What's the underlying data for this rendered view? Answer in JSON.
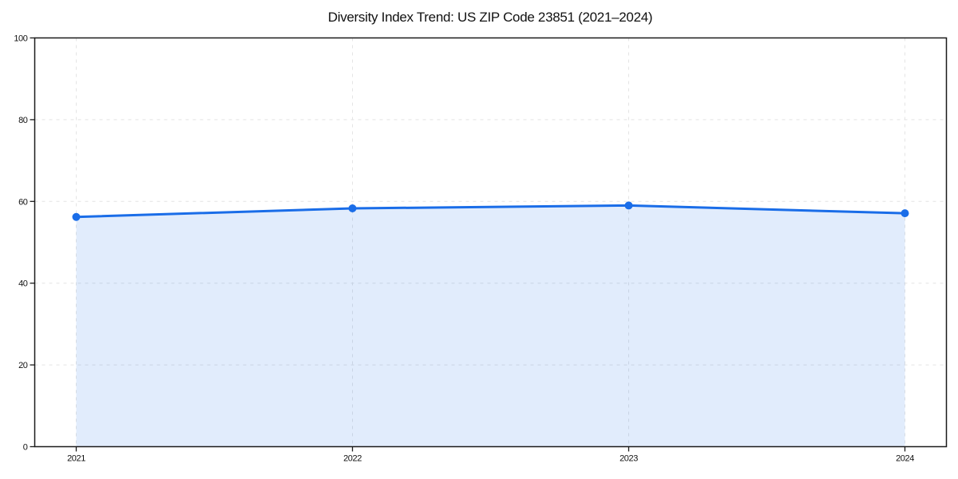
{
  "chart_data": {
    "type": "area",
    "title": "Diversity Index Trend: US ZIP Code 23851 (2021–2024)",
    "x": [
      "2021",
      "2022",
      "2023",
      "2024"
    ],
    "values": [
      56.2,
      58.3,
      59.0,
      57.1
    ],
    "xlabel": "",
    "ylabel": "",
    "ylim": [
      0,
      100
    ],
    "yticks": [
      0,
      20,
      40,
      60,
      80,
      100
    ],
    "grid": "dashed both axes",
    "legend": "none",
    "marker": "circle",
    "colors": {
      "line": "#1a6de8",
      "marker": "#1a6de8",
      "fill": "rgba(26,109,232,0.13)",
      "grid": "#e4e4e4",
      "axis": "#1a1a1a",
      "text": "#111111",
      "background": "#ffffff"
    }
  }
}
